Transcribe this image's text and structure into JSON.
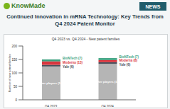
{
  "header": {
    "logo": "KnowMade",
    "badge": "NEWS",
    "title": "Continued Innovation in mRNA Technology: Key Trends from Q4 2024 Patent Monitor"
  },
  "chart_data": {
    "type": "bar",
    "title": "Q4 2023 vs. Q4 2024 - New patent families",
    "y_label": "Number of new patent families",
    "categories": [
      "Q4 2023",
      "Q4 2024"
    ],
    "series": [
      {
        "name": "Other players",
        "color": "#b5b5b5",
        "values": [
          124,
          134
        ],
        "value_labels": [
          "Other players (124)",
          "Other players (134)"
        ]
      },
      {
        "name": "Yale",
        "color": "#4a4f5a",
        "values": [
          6,
          6
        ],
        "value_labels": [
          "Yale (6)",
          "Yale (6)"
        ]
      },
      {
        "name": "Moderna",
        "color": "#d9363e",
        "values": [
          13,
          8
        ],
        "value_labels": [
          "Moderna (13)",
          "Moderna (8)"
        ]
      },
      {
        "name": "BioNTech",
        "color": "#3aa17e",
        "values": [
          7,
          7
        ],
        "value_labels": [
          "BioNTech (7)",
          "BioNTech (7)"
        ]
      }
    ],
    "ylim": [
      0,
      200
    ],
    "yticks": [
      0,
      50,
      100,
      150,
      200
    ],
    "stacked": true,
    "data_labels": true,
    "grid": false
  }
}
